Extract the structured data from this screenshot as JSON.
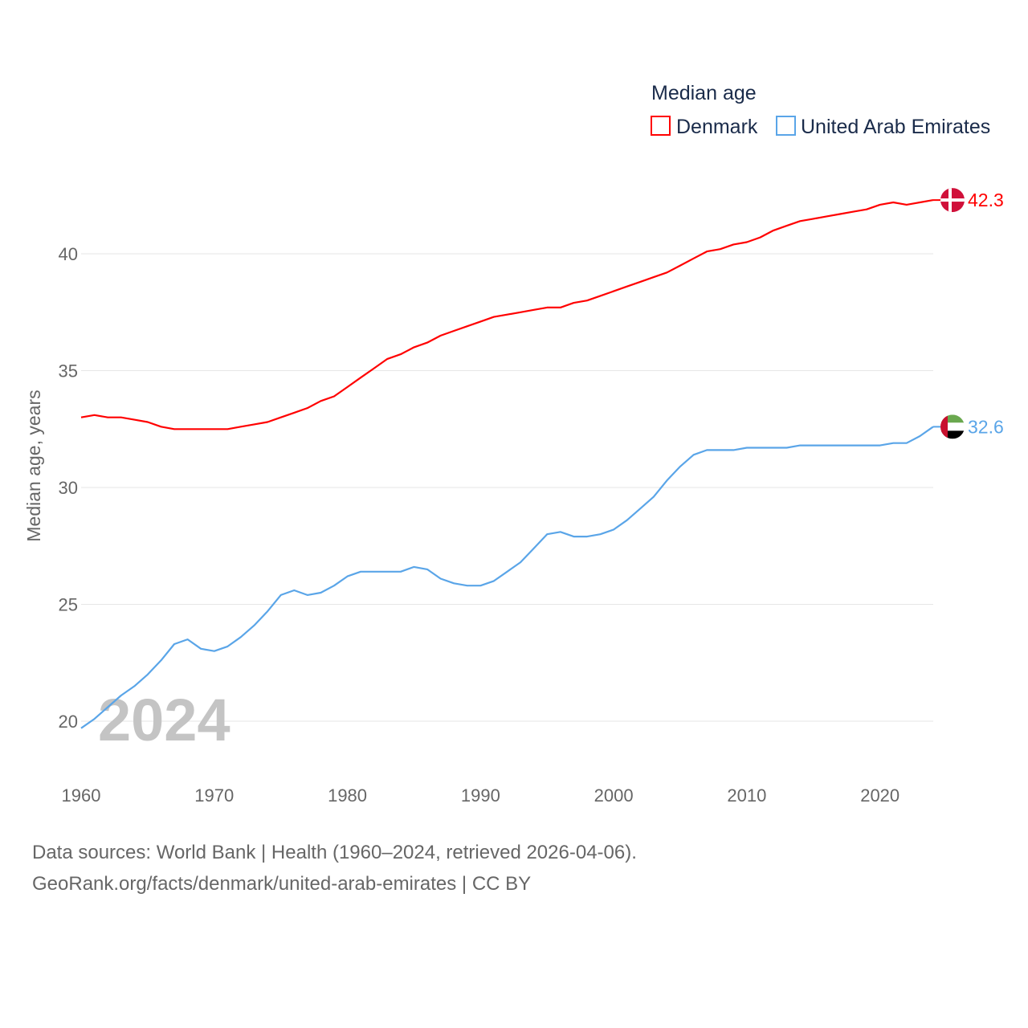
{
  "chart_data": {
    "type": "line",
    "title": "Median age",
    "xlabel": "",
    "ylabel": "Median age, years",
    "xlim": [
      1960,
      2024
    ],
    "ylim": [
      20,
      40
    ],
    "y_ticks": [
      20,
      25,
      30,
      35,
      40
    ],
    "x_ticks": [
      1960,
      1970,
      1980,
      1990,
      2000,
      2010,
      2020
    ],
    "grid": true,
    "legend_position": "top-right",
    "year_watermark": "2024",
    "x": [
      1960,
      1961,
      1962,
      1963,
      1964,
      1965,
      1966,
      1967,
      1968,
      1969,
      1970,
      1971,
      1972,
      1973,
      1974,
      1975,
      1976,
      1977,
      1978,
      1979,
      1980,
      1981,
      1982,
      1983,
      1984,
      1985,
      1986,
      1987,
      1988,
      1989,
      1990,
      1991,
      1992,
      1993,
      1994,
      1995,
      1996,
      1997,
      1998,
      1999,
      2000,
      2001,
      2002,
      2003,
      2004,
      2005,
      2006,
      2007,
      2008,
      2009,
      2010,
      2011,
      2012,
      2013,
      2014,
      2015,
      2016,
      2017,
      2018,
      2019,
      2020,
      2021,
      2022,
      2023,
      2024
    ],
    "series": [
      {
        "name": "Denmark",
        "color": "#ff0000",
        "end_label": "42.3",
        "flag": "denmark-flag",
        "values": [
          33.0,
          33.1,
          33.0,
          33.0,
          32.9,
          32.8,
          32.6,
          32.5,
          32.5,
          32.5,
          32.5,
          32.5,
          32.6,
          32.7,
          32.8,
          33.0,
          33.2,
          33.4,
          33.7,
          33.9,
          34.3,
          34.7,
          35.1,
          35.5,
          35.7,
          36.0,
          36.2,
          36.5,
          36.7,
          36.9,
          37.1,
          37.3,
          37.4,
          37.5,
          37.6,
          37.7,
          37.7,
          37.9,
          38.0,
          38.2,
          38.4,
          38.6,
          38.8,
          39.0,
          39.2,
          39.5,
          39.8,
          40.1,
          40.2,
          40.4,
          40.5,
          40.7,
          41.0,
          41.2,
          41.4,
          41.5,
          41.6,
          41.7,
          41.8,
          41.9,
          42.1,
          42.2,
          42.1,
          42.2,
          42.3
        ]
      },
      {
        "name": "United Arab Emirates",
        "color": "#5aa5e8",
        "end_label": "32.6",
        "flag": "uae-flag",
        "values": [
          19.7,
          20.1,
          20.6,
          21.1,
          21.5,
          22.0,
          22.6,
          23.3,
          23.5,
          23.1,
          23.0,
          23.2,
          23.6,
          24.1,
          24.7,
          25.4,
          25.6,
          25.4,
          25.5,
          25.8,
          26.2,
          26.4,
          26.4,
          26.4,
          26.4,
          26.6,
          26.5,
          26.1,
          25.9,
          25.8,
          25.8,
          26.0,
          26.4,
          26.8,
          27.4,
          28.0,
          28.1,
          27.9,
          27.9,
          28.0,
          28.2,
          28.6,
          29.1,
          29.6,
          30.3,
          30.9,
          31.4,
          31.6,
          31.6,
          31.6,
          31.7,
          31.7,
          31.7,
          31.7,
          31.8,
          31.8,
          31.8,
          31.8,
          31.8,
          31.8,
          31.8,
          31.9,
          31.9,
          32.2,
          32.6
        ]
      }
    ]
  },
  "source": {
    "line1": "Data sources: World Bank | Health (1960–2024, retrieved 2026-04-06).",
    "line2": "GeoRank.org/facts/denmark/united-arab-emirates | CC BY"
  }
}
